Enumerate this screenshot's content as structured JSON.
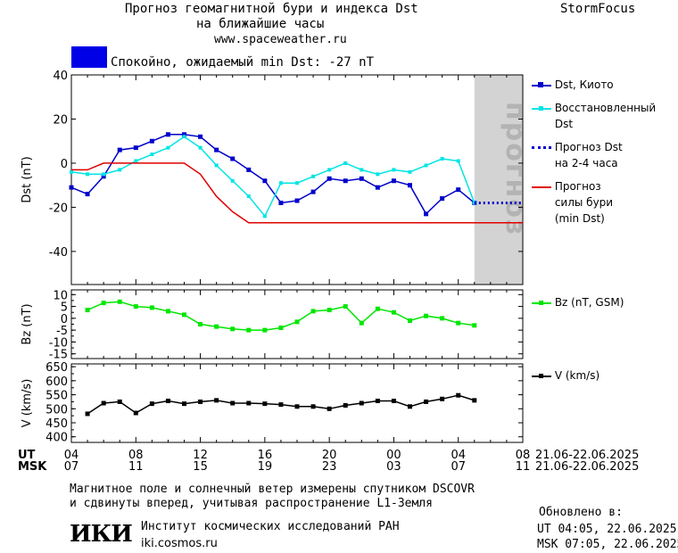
{
  "header": {
    "title_line1": "Прогноз геомагнитной бури и индекса Dst",
    "title_line2": "на ближайшие часы",
    "url": "www.spaceweather.ru",
    "brand": "StormFocus",
    "status_text": "Спокойно, ожидаемый min Dst: -27 nT",
    "status_color": "#0000e6"
  },
  "legend": {
    "dst_kyoto": "Dst, Киото",
    "restored_1": "Восстановленный",
    "restored_2": "Dst",
    "forecast_1": "Прогноз Dst",
    "forecast_2": "на 2-4 часа",
    "storm_1": "Прогноз",
    "storm_2": "силы бури",
    "storm_3": "(min Dst)",
    "bz": "Bz (nT, GSM)",
    "v": "V (km/s)"
  },
  "axes": {
    "ut_label": "UT",
    "msk_label": "MSK",
    "ut_ticks": [
      "04",
      "08",
      "12",
      "16",
      "20",
      "00",
      "04",
      "08"
    ],
    "msk_ticks": [
      "07",
      "11",
      "15",
      "19",
      "23",
      "03",
      "07",
      "11"
    ],
    "date_range_ut": "21.06-22.06.2025",
    "date_range_msk": "21.06-22.06.2025",
    "forecast_zone_label": "прогноз"
  },
  "footer": {
    "line1": "Магнитное поле и солнечный ветер измерены спутником DSCOVR",
    "line2": "и сдвинуты вперед, учитывая распространение L1-Земля",
    "institute": "Институт космических исследований РАН",
    "site": "iki.cosmos.ru",
    "logo": "ИКИ",
    "updated_label": "Обновлено в:",
    "updated_ut": "UT   04:05, 22.06.2025",
    "updated_msk": "MSK 07:05, 22.06.2025"
  },
  "chart_data": [
    {
      "type": "line",
      "ylabel": "Dst (nT)",
      "ylim": [
        -55,
        40
      ],
      "yticks": [
        40,
        20,
        0,
        -20,
        -40
      ],
      "xlim": [
        4,
        32
      ],
      "colors": {
        "kyoto": "#0000cc",
        "restored": "#00e5e5",
        "forecast": "#0000cc",
        "storm": "#e00000",
        "forecast_zone": "#d3d3d3"
      },
      "forecast_zone": [
        29,
        33
      ],
      "series": [
        {
          "name": "Dst, Киото",
          "x": [
            4,
            5,
            6,
            7,
            8,
            9,
            10,
            11,
            12,
            13,
            14,
            15,
            16,
            17,
            18,
            19,
            20,
            21,
            22,
            23,
            24,
            25,
            26,
            27,
            28,
            29
          ],
          "y": [
            -11,
            -14,
            -6,
            6,
            7,
            10,
            13,
            13,
            12,
            6,
            2,
            -3,
            -8,
            -18,
            -17,
            -13,
            -7,
            -8,
            -7,
            -11,
            -8,
            -10,
            -23,
            -16,
            -12,
            -18
          ]
        },
        {
          "name": "Восстановленный Dst",
          "x": [
            4,
            5,
            6,
            7,
            8,
            9,
            10,
            11,
            12,
            13,
            14,
            15,
            16,
            17,
            18,
            19,
            20,
            21,
            22,
            23,
            24,
            25,
            26,
            27,
            28,
            29
          ],
          "y": [
            -4,
            -5,
            -5,
            -3,
            1,
            4,
            7,
            12,
            7,
            -1,
            -8,
            -15,
            -24,
            -9,
            -9,
            -6,
            -3,
            0,
            -3,
            -5,
            -3,
            -4,
            -1,
            2,
            1,
            -18
          ]
        },
        {
          "name": "Прогноз Dst на 2-4 часа",
          "x": [
            29,
            30,
            31,
            32
          ],
          "y": [
            -18,
            -18,
            -18,
            -18
          ]
        },
        {
          "name": "Прогноз силы бури (min Dst)",
          "x": [
            4,
            5,
            6,
            7,
            8,
            9,
            10,
            11,
            12,
            13,
            14,
            15,
            32
          ],
          "y": [
            -3,
            -3,
            0,
            0,
            0,
            0,
            0,
            0,
            -5,
            -15,
            -22,
            -27,
            -27
          ]
        }
      ]
    },
    {
      "type": "line",
      "ylabel": "Bz (nT)",
      "ylim": [
        -17,
        12
      ],
      "yticks": [
        10,
        5,
        0,
        -5,
        -10,
        -15
      ],
      "xlim": [
        4,
        32
      ],
      "color": "#00e600",
      "series": [
        {
          "name": "Bz (nT, GSM)",
          "x": [
            5,
            6,
            7,
            8,
            9,
            10,
            11,
            12,
            13,
            14,
            15,
            16,
            17,
            18,
            19,
            20,
            21,
            22,
            23,
            24,
            25,
            26,
            27,
            28,
            29
          ],
          "y": [
            3.5,
            6.5,
            7,
            5,
            4.5,
            3,
            1.5,
            -2.5,
            -3.5,
            -4.5,
            -5,
            -5,
            -4,
            -1.5,
            3,
            3.5,
            5,
            -2,
            4,
            2.5,
            -1,
            1,
            0,
            -2,
            -3
          ]
        }
      ]
    },
    {
      "type": "line",
      "ylabel": "V (km/s)",
      "ylim": [
        380,
        660
      ],
      "yticks": [
        650,
        600,
        550,
        500,
        450,
        400
      ],
      "xlim": [
        4,
        32
      ],
      "color": "#000000",
      "series": [
        {
          "name": "V (km/s)",
          "x": [
            5,
            6,
            7,
            8,
            9,
            10,
            11,
            12,
            13,
            14,
            15,
            16,
            17,
            18,
            19,
            20,
            21,
            22,
            23,
            24,
            25,
            26,
            27,
            28,
            29
          ],
          "y": [
            482,
            520,
            525,
            485,
            518,
            528,
            518,
            525,
            530,
            520,
            520,
            518,
            515,
            508,
            508,
            500,
            512,
            520,
            528,
            528,
            508,
            525,
            535,
            548,
            530
          ]
        }
      ]
    }
  ]
}
